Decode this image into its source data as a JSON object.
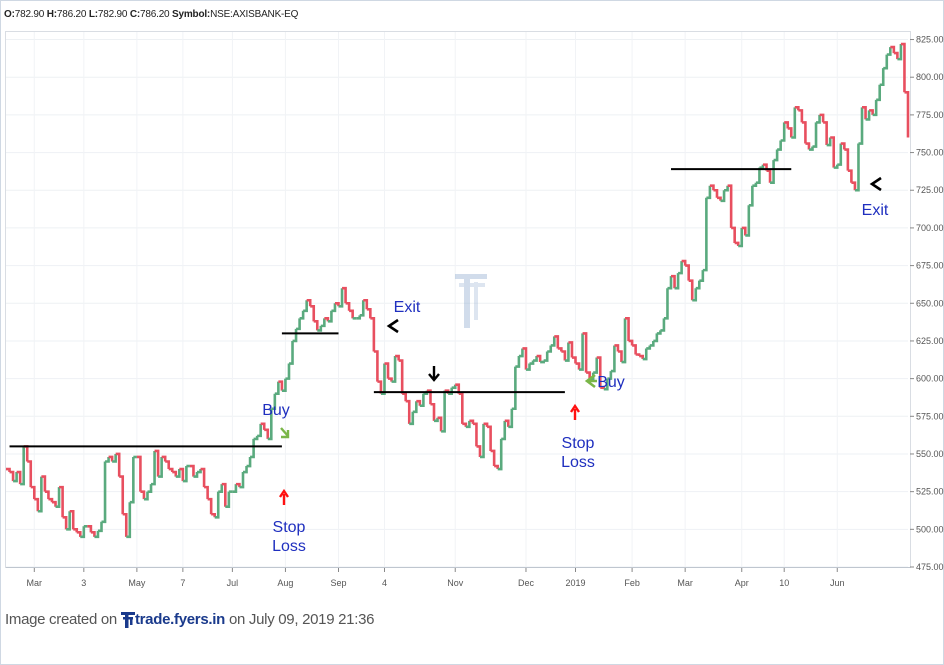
{
  "header": {
    "o_label": "O:",
    "o_value": "782.90",
    "h_label": "H:",
    "h_value": "786.20",
    "l_label": "L:",
    "l_value": "782.90",
    "c_label": "C:",
    "c_value": "786.20",
    "symbol_label": "Symbol:",
    "symbol_value": "NSE:AXISBANK-EQ"
  },
  "footer": {
    "prefix": "Image created on",
    "brand": "trade.fyers.in",
    "suffix": "on July 09, 2019 21:36"
  },
  "colors": {
    "up": "#5aaa7e",
    "down": "#e84f5f",
    "level": "#000000",
    "annotation_text": "#1f2fbf",
    "stop_arrow": "#ff1010",
    "buy_arrow": "#7ab648"
  },
  "chart_data": {
    "type": "line",
    "style": "kagi",
    "ylim": [
      475,
      830
    ],
    "y_ticks": [
      "475.00",
      "500.00",
      "525.00",
      "550.00",
      "575.00",
      "600.00",
      "625.00",
      "650.00",
      "675.00",
      "700.00",
      "725.00",
      "750.00",
      "775.00",
      "800.00",
      "825.00"
    ],
    "x_ticks": [
      {
        "label": "Mar",
        "i": 8
      },
      {
        "label": "3",
        "i": 22
      },
      {
        "label": "May",
        "i": 37
      },
      {
        "label": "7",
        "i": 50
      },
      {
        "label": "Jul",
        "i": 64
      },
      {
        "label": "Aug",
        "i": 79
      },
      {
        "label": "Sep",
        "i": 94
      },
      {
        "label": "4",
        "i": 107
      },
      {
        "label": "Nov",
        "i": 127
      },
      {
        "label": "Dec",
        "i": 147
      },
      {
        "label": "2019",
        "i": 161
      },
      {
        "label": "Feb",
        "i": 177
      },
      {
        "label": "Mar",
        "i": 192
      },
      {
        "label": "Apr",
        "i": 208
      },
      {
        "label": "10",
        "i": 220
      },
      {
        "label": "Jun",
        "i": 235
      }
    ],
    "grid": true,
    "series": [
      {
        "values": [
          540,
          538,
          532,
          538,
          530,
          555,
          545,
          528,
          520,
          512,
          535,
          525,
          520,
          518,
          515,
          528,
          508,
          500,
          512,
          500,
          498,
          495,
          502,
          502,
          498,
          495,
          499,
          505,
          545,
          548,
          545,
          550,
          535,
          510,
          495,
          518,
          548,
          548,
          525,
          520,
          525,
          530,
          552,
          535,
          548,
          545,
          540,
          538,
          535,
          540,
          532,
          542,
          542,
          535,
          538,
          540,
          528,
          520,
          510,
          508,
          525,
          530,
          515,
          525,
          525,
          530,
          528,
          538,
          542,
          548,
          560,
          562,
          570,
          566,
          560,
          580,
          590,
          598,
          592,
          600,
          610,
          625,
          633,
          640,
          645,
          652,
          648,
          638,
          632,
          635,
          640,
          638,
          645,
          650,
          648,
          660,
          650,
          645,
          640,
          640,
          642,
          652,
          646,
          640,
          618,
          598,
          590,
          610,
          600,
          598,
          615,
          612,
          590,
          585,
          570,
          578,
          585,
          582,
          590,
          592,
          583,
          572,
          574,
          565,
          592,
          590,
          594,
          596,
          590,
          570,
          568,
          572,
          570,
          555,
          548,
          570,
          568,
          552,
          542,
          540,
          560,
          572,
          568,
          580,
          608,
          615,
          620,
          606,
          610,
          612,
          615,
          611,
          612,
          618,
          622,
          628,
          620,
          618,
          612,
          624,
          614,
          610,
          606,
          630,
          604,
          599,
          604,
          614,
          594,
          593,
          600,
          605,
          622,
          618,
          611,
          640,
          625,
          622,
          616,
          615,
          613,
          620,
          622,
          625,
          630,
          632,
          640,
          660,
          668,
          660,
          670,
          678,
          675,
          665,
          652,
          660,
          665,
          672,
          720,
          728,
          725,
          720,
          718,
          725,
          728,
          700,
          690,
          688,
          700,
          695,
          715,
          728,
          730,
          740,
          742,
          738,
          730,
          745,
          752,
          758,
          770,
          766,
          760,
          780,
          778,
          770,
          756,
          752,
          754,
          770,
          775,
          770,
          755,
          760,
          740,
          742,
          756,
          752,
          738,
          730,
          725,
          756,
          780,
          772,
          778,
          775,
          785,
          795,
          806,
          815,
          820,
          816,
          812,
          822,
          790,
          760
        ]
      }
    ],
    "annotations": [
      {
        "label": "Buy"
      },
      {
        "label": "Stop"
      },
      {
        "label": "Loss"
      },
      {
        "label": "Exit"
      },
      {
        "label": "Stop"
      },
      {
        "label": "Loss"
      },
      {
        "label": "Buy"
      },
      {
        "label": "Exit"
      }
    ]
  }
}
